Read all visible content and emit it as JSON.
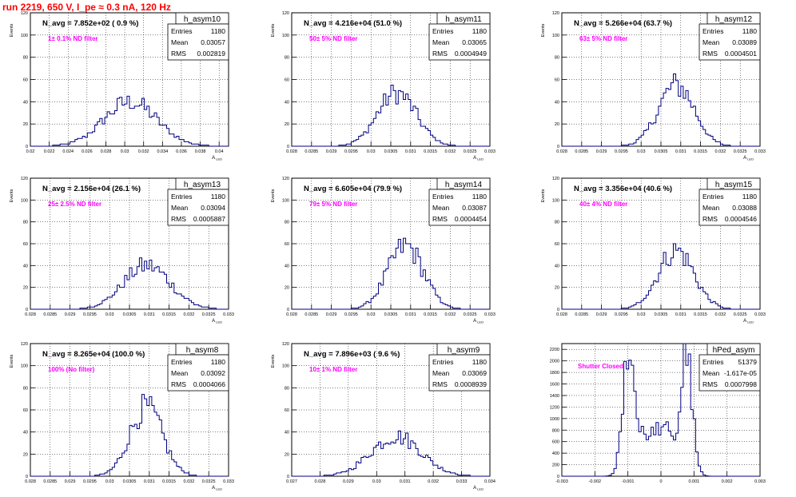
{
  "title": "run 2219,   650 V, I_pe ≈ 0.3 nA, 120 Hz",
  "stat_labels": {
    "entries": "Entries",
    "mean": "Mean",
    "rms": "RMS"
  },
  "colors": {
    "title": "#ff0000",
    "annotation": "#ff00ff",
    "histogram": "#000080",
    "grid": "#000000"
  },
  "chart_data": [
    {
      "type": "histogram",
      "name": "h_asym10",
      "navg": "N_avg = 7.852e+02 ( 0.9 %)",
      "filter": "1± 0.1% ND filter",
      "entries": "1180",
      "mean": "0.03057",
      "rms": "0.002819",
      "xlabel": "A_LED",
      "ylabel": "Events",
      "xlim": [
        0.02,
        0.041
      ],
      "ylim": [
        0,
        120
      ],
      "xticks": [
        "0.02",
        "0.022",
        "0.024",
        "0.026",
        "0.028",
        "0.03",
        "0.032",
        "0.034",
        "0.036",
        "0.038",
        "0.04"
      ],
      "xtick_values": [
        0.02,
        0.022,
        0.024,
        0.026,
        0.028,
        0.03,
        0.032,
        0.034,
        0.036,
        0.038,
        0.04
      ],
      "yticks": [
        "0",
        "20",
        "40",
        "60",
        "80",
        "100",
        "120"
      ],
      "shape": {
        "center": 0.0306,
        "sigma": 0.0028,
        "peak": 40
      }
    },
    {
      "type": "histogram",
      "name": "h_asym11",
      "navg": "N_avg = 4.216e+04 (51.0 %)",
      "filter": "50± 5% ND filter",
      "entries": "1180",
      "mean": "0.03065",
      "rms": "0.0004949",
      "xlabel": "A_LED",
      "ylabel": "Events",
      "xlim": [
        0.028,
        0.033
      ],
      "ylim": [
        0,
        120
      ],
      "xticks": [
        "0.028",
        "0.0285",
        "0.029",
        "0.0295",
        "0.03",
        "0.0305",
        "0.031",
        "0.0315",
        "0.032",
        "0.0325",
        "0.033"
      ],
      "xtick_values": [
        0.028,
        0.0285,
        0.029,
        0.0295,
        0.03,
        0.0305,
        0.031,
        0.0315,
        0.032,
        0.0325,
        0.033
      ],
      "yticks": [
        "0",
        "20",
        "40",
        "60",
        "80",
        "100",
        "120"
      ],
      "shape": {
        "center": 0.03065,
        "sigma": 0.00049,
        "peak": 48
      }
    },
    {
      "type": "histogram",
      "name": "h_asym12",
      "navg": "N_avg = 5.266e+04 (63.7 %)",
      "filter": "63± 5% ND filter",
      "entries": "1180",
      "mean": "0.03089",
      "rms": "0.0004501",
      "xlabel": "A_LED",
      "ylabel": "Events",
      "xlim": [
        0.028,
        0.033
      ],
      "ylim": [
        0,
        120
      ],
      "xticks": [
        "0.028",
        "0.0285",
        "0.029",
        "0.0295",
        "0.03",
        "0.0305",
        "0.031",
        "0.0315",
        "0.032",
        "0.0325",
        "0.033"
      ],
      "xtick_values": [
        0.028,
        0.0285,
        0.029,
        0.0295,
        0.03,
        0.0305,
        0.031,
        0.0315,
        0.032,
        0.0325,
        0.033
      ],
      "yticks": [
        "0",
        "20",
        "40",
        "60",
        "80",
        "100",
        "120"
      ],
      "shape": {
        "center": 0.03089,
        "sigma": 0.00045,
        "peak": 55
      }
    },
    {
      "type": "histogram",
      "name": "h_asym13",
      "navg": "N_avg = 2.156e+04 (26.1 %)",
      "filter": "25± 2.5% ND filter",
      "entries": "1180",
      "mean": "0.03094",
      "rms": "0.0005887",
      "xlabel": "A_LED",
      "ylabel": "Events",
      "xlim": [
        0.028,
        0.033
      ],
      "ylim": [
        0,
        120
      ],
      "xticks": [
        "0.028",
        "0.0285",
        "0.029",
        "0.0295",
        "0.03",
        "0.0305",
        "0.031",
        "0.0315",
        "0.032",
        "0.0325",
        "0.033"
      ],
      "xtick_values": [
        0.028,
        0.0285,
        0.029,
        0.0295,
        0.03,
        0.0305,
        0.031,
        0.0315,
        0.032,
        0.0325,
        0.033
      ],
      "yticks": [
        "0",
        "20",
        "40",
        "60",
        "80",
        "100",
        "120"
      ],
      "shape": {
        "center": 0.03094,
        "sigma": 0.00059,
        "peak": 40
      }
    },
    {
      "type": "histogram",
      "name": "h_asym14",
      "navg": "N_avg = 6.605e+04 (79.9 %)",
      "filter": "79± 5% ND filter",
      "entries": "1180",
      "mean": "0.03087",
      "rms": "0.0004454",
      "xlabel": "A_LED",
      "ylabel": "Events",
      "xlim": [
        0.028,
        0.033
      ],
      "ylim": [
        0,
        120
      ],
      "xticks": [
        "0.028",
        "0.0285",
        "0.029",
        "0.0295",
        "0.03",
        "0.0305",
        "0.031",
        "0.0315",
        "0.032",
        "0.0325",
        "0.033"
      ],
      "xtick_values": [
        0.028,
        0.0285,
        0.029,
        0.0295,
        0.03,
        0.0305,
        0.031,
        0.0315,
        0.032,
        0.0325,
        0.033
      ],
      "yticks": [
        "0",
        "20",
        "40",
        "60",
        "80",
        "100",
        "120"
      ],
      "shape": {
        "center": 0.03087,
        "sigma": 0.00045,
        "peak": 58
      }
    },
    {
      "type": "histogram",
      "name": "h_asym15",
      "navg": "N_avg = 3.356e+04 (40.6 %)",
      "filter": "40± 4% ND filter",
      "entries": "1180",
      "mean": "0.03088",
      "rms": "0.0004546",
      "xlabel": "A_LED",
      "ylabel": "Events",
      "xlim": [
        0.028,
        0.033
      ],
      "ylim": [
        0,
        120
      ],
      "xticks": [
        "0.028",
        "0.0285",
        "0.029",
        "0.0295",
        "0.03",
        "0.0305",
        "0.031",
        "0.0315",
        "0.032",
        "0.0325",
        "0.033"
      ],
      "xtick_values": [
        0.028,
        0.0285,
        0.029,
        0.0295,
        0.03,
        0.0305,
        0.031,
        0.0315,
        0.032,
        0.0325,
        0.033
      ],
      "yticks": [
        "0",
        "20",
        "40",
        "60",
        "80",
        "100",
        "120"
      ],
      "shape": {
        "center": 0.03088,
        "sigma": 0.00045,
        "peak": 54
      }
    },
    {
      "type": "histogram",
      "name": "h_asym8",
      "navg": "N_avg = 8.265e+04 (100.0 %)",
      "filter": "100% (No filter)",
      "entries": "1180",
      "mean": "0.03092",
      "rms": "0.0004066",
      "xlabel": "A_LED",
      "ylabel": "Events",
      "xlim": [
        0.028,
        0.033
      ],
      "ylim": [
        0,
        120
      ],
      "xticks": [
        "0.028",
        "0.0285",
        "0.029",
        "0.0295",
        "0.03",
        "0.0305",
        "0.031",
        "0.0315",
        "0.032",
        "0.0325",
        "0.033"
      ],
      "xtick_values": [
        0.028,
        0.0285,
        0.029,
        0.0295,
        0.03,
        0.0305,
        0.031,
        0.0315,
        0.032,
        0.0325,
        0.033
      ],
      "yticks": [
        "0",
        "20",
        "40",
        "60",
        "80",
        "100",
        "120"
      ],
      "shape": {
        "center": 0.03092,
        "sigma": 0.00041,
        "peak": 62
      }
    },
    {
      "type": "histogram",
      "name": "h_asym9",
      "navg": "N_avg = 7.896e+03 ( 9.6 %)",
      "filter": "10± 1% ND filter",
      "entries": "1180",
      "mean": "0.03069",
      "rms": "0.0008939",
      "xlabel": "A_LED",
      "ylabel": "Events",
      "xlim": [
        0.027,
        0.034
      ],
      "ylim": [
        0,
        120
      ],
      "xticks": [
        "0.027",
        "0.028",
        "0.029",
        "0.03",
        "0.031",
        "0.032",
        "0.033",
        "0.034"
      ],
      "xtick_values": [
        0.027,
        0.028,
        0.029,
        0.03,
        0.031,
        0.032,
        0.033,
        0.034
      ],
      "yticks": [
        "0",
        "20",
        "40",
        "60",
        "80",
        "100",
        "120"
      ],
      "shape": {
        "center": 0.03069,
        "sigma": 0.00089,
        "peak": 36
      }
    },
    {
      "type": "histogram",
      "name": "hPed_asym",
      "navg": "",
      "filter": "Shutter Closed",
      "entries": "51379",
      "mean": "-1.617e-05",
      "rms": "0.0007998",
      "xlabel": "",
      "ylabel": "",
      "xlim": [
        -0.003,
        0.003
      ],
      "ylim": [
        0,
        2300
      ],
      "xticks": [
        "-0.003",
        "-0.002",
        "-0.001",
        "0",
        "0.001",
        "0.002",
        "0.003"
      ],
      "xtick_values": [
        -0.003,
        -0.002,
        -0.001,
        0,
        0.001,
        0.002,
        0.003
      ],
      "yticks": [
        "0",
        "200",
        "400",
        "600",
        "800",
        "1000",
        "1200",
        "1400",
        "1600",
        "1800",
        "2000",
        "2200"
      ],
      "shape": {
        "bimodal": true,
        "peaks": [
          -0.00095,
          0.00075
        ],
        "sigma": 0.00019,
        "peak": 2150,
        "valley": 750
      }
    }
  ]
}
